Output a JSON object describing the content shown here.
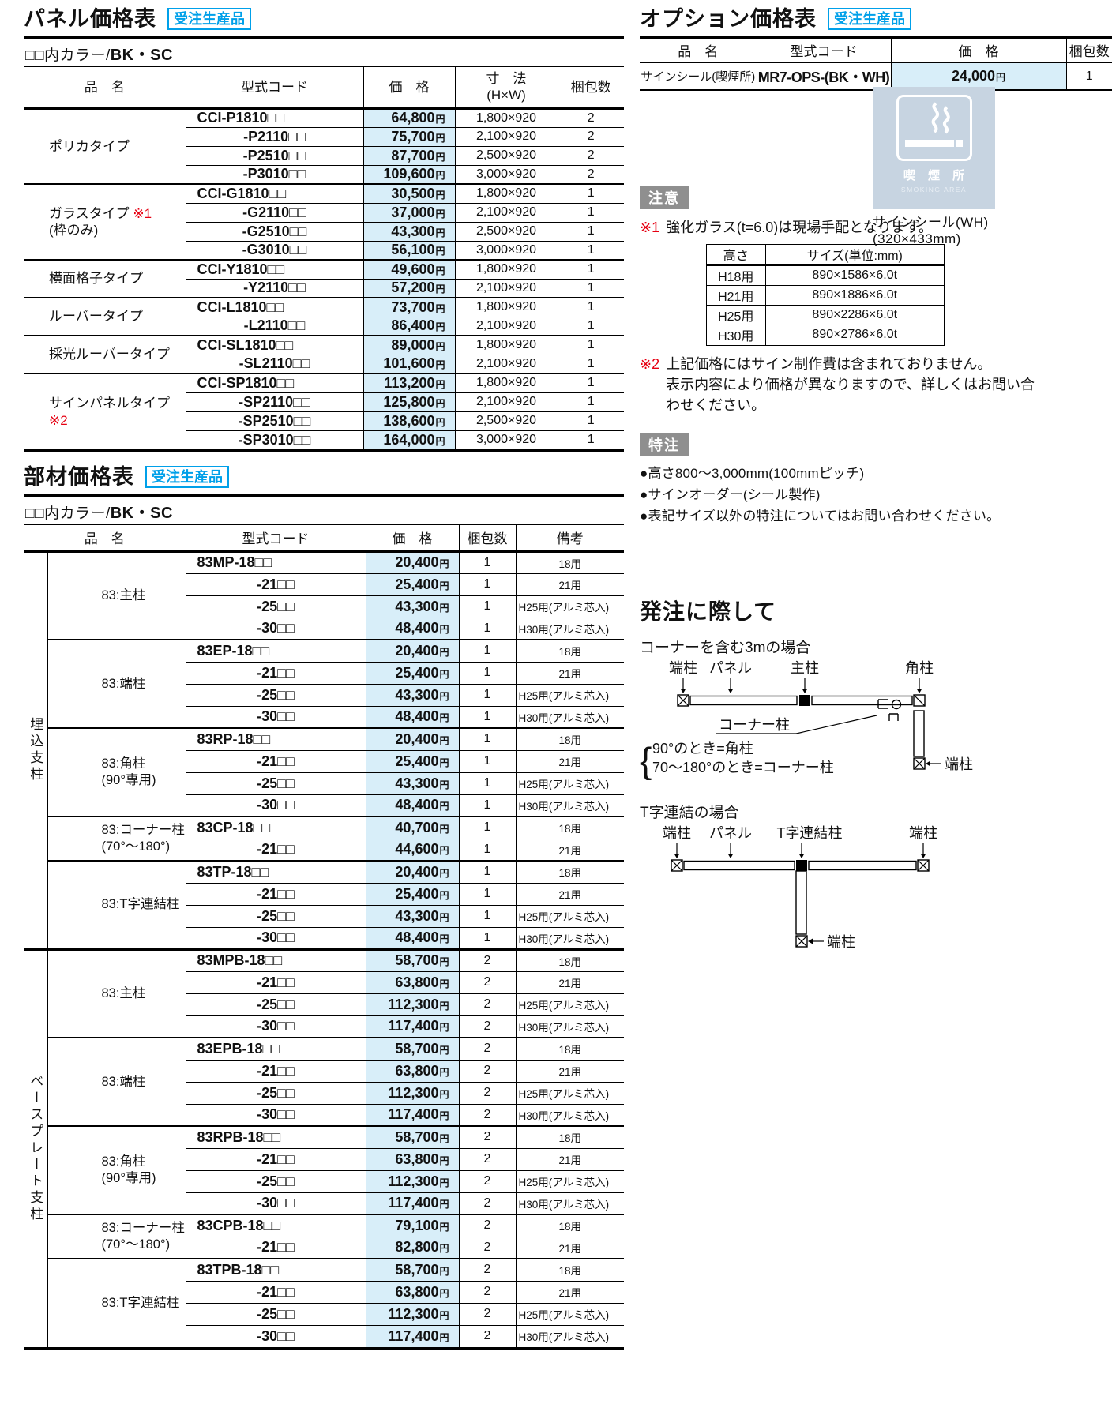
{
  "badges": {
    "order_made": "受注生産品",
    "caution": "注意",
    "custom": "特注"
  },
  "color_note": {
    "prefix": "□□内カラー/",
    "value": "BK・SC"
  },
  "panel": {
    "title": "パネル価格表",
    "headers": {
      "name": "品　名",
      "code": "型式コード",
      "price": "価　格",
      "size_1": "寸　法",
      "size_2": "(H×W)",
      "qty": "梱包数"
    },
    "groups": [
      {
        "label": "ポリカタイプ",
        "rows": [
          {
            "code": "CCI-P1810□□",
            "price": "64,800円",
            "size": "1,800×920",
            "qty": "2"
          },
          {
            "code": "-P2110□□",
            "price": "75,700円",
            "size": "2,100×920",
            "qty": "2"
          },
          {
            "code": "-P2510□□",
            "price": "87,700円",
            "size": "2,500×920",
            "qty": "2"
          },
          {
            "code": "-P3010□□",
            "price": "109,600円",
            "size": "3,000×920",
            "qty": "2"
          }
        ]
      },
      {
        "label": "ガラスタイプ",
        "ref": "※1",
        "sub": "(枠のみ)",
        "rows": [
          {
            "code": "CCI-G1810□□",
            "price": "30,500円",
            "size": "1,800×920",
            "qty": "1"
          },
          {
            "code": "-G2110□□",
            "price": "37,000円",
            "size": "2,100×920",
            "qty": "1"
          },
          {
            "code": "-G2510□□",
            "price": "43,300円",
            "size": "2,500×920",
            "qty": "1"
          },
          {
            "code": "-G3010□□",
            "price": "56,100円",
            "size": "3,000×920",
            "qty": "1"
          }
        ]
      },
      {
        "label": "横面格子タイプ",
        "rows": [
          {
            "code": "CCI-Y1810□□",
            "price": "49,600円",
            "size": "1,800×920",
            "qty": "1"
          },
          {
            "code": "-Y2110□□",
            "price": "57,200円",
            "size": "2,100×920",
            "qty": "1"
          }
        ]
      },
      {
        "label": "ルーバータイプ",
        "rows": [
          {
            "code": "CCI-L1810□□",
            "price": "73,700円",
            "size": "1,800×920",
            "qty": "1"
          },
          {
            "code": "-L2110□□",
            "price": "86,400円",
            "size": "2,100×920",
            "qty": "1"
          }
        ]
      },
      {
        "label": "採光ルーバータイプ",
        "rows": [
          {
            "code": "CCI-SL1810□□",
            "price": "89,000円",
            "size": "1,800×920",
            "qty": "1"
          },
          {
            "code": "-SL2110□□",
            "price": "101,600円",
            "size": "2,100×920",
            "qty": "1"
          }
        ]
      },
      {
        "label": "サインパネルタイプ",
        "ref": "※2",
        "rows": [
          {
            "code": "CCI-SP1810□□",
            "price": "113,200円",
            "size": "1,800×920",
            "qty": "1"
          },
          {
            "code": "-SP2110□□",
            "price": "125,800円",
            "size": "2,100×920",
            "qty": "1"
          },
          {
            "code": "-SP2510□□",
            "price": "138,600円",
            "size": "2,500×920",
            "qty": "1"
          },
          {
            "code": "-SP3010□□",
            "price": "164,000円",
            "size": "3,000×920",
            "qty": "1"
          }
        ]
      }
    ]
  },
  "parts": {
    "title": "部材価格表",
    "headers": {
      "name": "品　名",
      "code": "型式コード",
      "price": "価　格",
      "qty": "梱包数",
      "note": "備考"
    },
    "sections": [
      {
        "vlabel": "埋込支柱",
        "groups": [
          {
            "label": "83:主柱",
            "rows": [
              {
                "code": "83MP-18□□",
                "price": "20,400円",
                "qty": "1",
                "note": "18用"
              },
              {
                "code": "-21□□",
                "price": "25,400円",
                "qty": "1",
                "note": "21用"
              },
              {
                "code": "-25□□",
                "price": "43,300円",
                "qty": "1",
                "note": "H25用(アルミ芯入)"
              },
              {
                "code": "-30□□",
                "price": "48,400円",
                "qty": "1",
                "note": "H30用(アルミ芯入)"
              }
            ]
          },
          {
            "label": "83:端柱",
            "rows": [
              {
                "code": "83EP-18□□",
                "price": "20,400円",
                "qty": "1",
                "note": "18用"
              },
              {
                "code": "-21□□",
                "price": "25,400円",
                "qty": "1",
                "note": "21用"
              },
              {
                "code": "-25□□",
                "price": "43,300円",
                "qty": "1",
                "note": "H25用(アルミ芯入)"
              },
              {
                "code": "-30□□",
                "price": "48,400円",
                "qty": "1",
                "note": "H30用(アルミ芯入)"
              }
            ]
          },
          {
            "label": "83:角柱",
            "sub": "(90°専用)",
            "rows": [
              {
                "code": "83RP-18□□",
                "price": "20,400円",
                "qty": "1",
                "note": "18用"
              },
              {
                "code": "-21□□",
                "price": "25,400円",
                "qty": "1",
                "note": "21用"
              },
              {
                "code": "-25□□",
                "price": "43,300円",
                "qty": "1",
                "note": "H25用(アルミ芯入)"
              },
              {
                "code": "-30□□",
                "price": "48,400円",
                "qty": "1",
                "note": "H30用(アルミ芯入)"
              }
            ]
          },
          {
            "label": "83:コーナー柱",
            "sub": "(70°〜180°)",
            "rows": [
              {
                "code": "83CP-18□□",
                "price": "40,700円",
                "qty": "1",
                "note": "18用"
              },
              {
                "code": "-21□□",
                "price": "44,600円",
                "qty": "1",
                "note": "21用"
              }
            ]
          },
          {
            "label": "83:T字連結柱",
            "rows": [
              {
                "code": "83TP-18□□",
                "price": "20,400円",
                "qty": "1",
                "note": "18用"
              },
              {
                "code": "-21□□",
                "price": "25,400円",
                "qty": "1",
                "note": "21用"
              },
              {
                "code": "-25□□",
                "price": "43,300円",
                "qty": "1",
                "note": "H25用(アルミ芯入)"
              },
              {
                "code": "-30□□",
                "price": "48,400円",
                "qty": "1",
                "note": "H30用(アルミ芯入)"
              }
            ]
          }
        ]
      },
      {
        "vlabel": "ベースプレート支柱",
        "groups": [
          {
            "label": "83:主柱",
            "rows": [
              {
                "code": "83MPB-18□□",
                "price": "58,700円",
                "qty": "2",
                "note": "18用"
              },
              {
                "code": "-21□□",
                "price": "63,800円",
                "qty": "2",
                "note": "21用"
              },
              {
                "code": "-25□□",
                "price": "112,300円",
                "qty": "2",
                "note": "H25用(アルミ芯入)"
              },
              {
                "code": "-30□□",
                "price": "117,400円",
                "qty": "2",
                "note": "H30用(アルミ芯入)"
              }
            ]
          },
          {
            "label": "83:端柱",
            "rows": [
              {
                "code": "83EPB-18□□",
                "price": "58,700円",
                "qty": "2",
                "note": "18用"
              },
              {
                "code": "-21□□",
                "price": "63,800円",
                "qty": "2",
                "note": "21用"
              },
              {
                "code": "-25□□",
                "price": "112,300円",
                "qty": "2",
                "note": "H25用(アルミ芯入)"
              },
              {
                "code": "-30□□",
                "price": "117,400円",
                "qty": "2",
                "note": "H30用(アルミ芯入)"
              }
            ]
          },
          {
            "label": "83:角柱",
            "sub": "(90°専用)",
            "rows": [
              {
                "code": "83RPB-18□□",
                "price": "58,700円",
                "qty": "2",
                "note": "18用"
              },
              {
                "code": "-21□□",
                "price": "63,800円",
                "qty": "2",
                "note": "21用"
              },
              {
                "code": "-25□□",
                "price": "112,300円",
                "qty": "2",
                "note": "H25用(アルミ芯入)"
              },
              {
                "code": "-30□□",
                "price": "117,400円",
                "qty": "2",
                "note": "H30用(アルミ芯入)"
              }
            ]
          },
          {
            "label": "83:コーナー柱",
            "sub": "(70°〜180°)",
            "rows": [
              {
                "code": "83CPB-18□□",
                "price": "79,100円",
                "qty": "2",
                "note": "18用"
              },
              {
                "code": "-21□□",
                "price": "82,800円",
                "qty": "2",
                "note": "21用"
              }
            ]
          },
          {
            "label": "83:T字連結柱",
            "rows": [
              {
                "code": "83TPB-18□□",
                "price": "58,700円",
                "qty": "2",
                "note": "18用"
              },
              {
                "code": "-21□□",
                "price": "63,800円",
                "qty": "2",
                "note": "21用"
              },
              {
                "code": "-25□□",
                "price": "112,300円",
                "qty": "2",
                "note": "H25用(アルミ芯入)"
              },
              {
                "code": "-30□□",
                "price": "117,400円",
                "qty": "2",
                "note": "H30用(アルミ芯入)"
              }
            ]
          }
        ]
      }
    ]
  },
  "options": {
    "title": "オプション価格表",
    "headers": {
      "name": "品　名",
      "code": "型式コード",
      "price": "価　格",
      "qty": "梱包数"
    },
    "row": {
      "name": "サインシール(喫煙所)",
      "code": "MR7-OPS-(BK・WH)",
      "price": "24,000円",
      "qty": "1"
    },
    "sign": {
      "kanji": "喫 煙 所",
      "en": "SMOKING AREA",
      "caption_1": "サインシール(WH)",
      "caption_2": "(320×433mm)"
    }
  },
  "caution": {
    "note1_ref": "※1",
    "note1": "強化ガラス(t=6.0)は現場手配となります。",
    "glass_table": {
      "headers": [
        "高さ",
        "サイズ(単位:mm)"
      ],
      "rows": [
        [
          "H18用",
          "890×1586×6.0t"
        ],
        [
          "H21用",
          "890×1886×6.0t"
        ],
        [
          "H25用",
          "890×2286×6.0t"
        ],
        [
          "H30用",
          "890×2786×6.0t"
        ]
      ]
    },
    "note2_ref": "※2",
    "note2_lines": [
      "上記価格にはサイン制作費は含まれておりません。",
      "表示内容により価格が異なりますので、詳しくはお問い合",
      "わせください。"
    ]
  },
  "custom": {
    "bullets": [
      "●高さ800〜3,000mm(100mmピッチ)",
      "●サインオーダー(シール製作)",
      "●表記サイズ以外の特注についてはお問い合わせください。"
    ]
  },
  "ordering": {
    "title": "発注に際して",
    "case1": "コーナーを含む3mの場合",
    "d1": {
      "labels": [
        "端柱",
        "パネル",
        "主柱",
        "角柱"
      ],
      "corner_label": "コーナー柱",
      "rule1": "90°のとき=角柱",
      "rule2": "70〜180°のとき=コーナー柱",
      "end_label": "端柱"
    },
    "case2": "T字連結の場合",
    "d2": {
      "labels": [
        "端柱",
        "パネル",
        "T字連結柱",
        "端柱"
      ],
      "end_label": "端柱"
    }
  },
  "colors": {
    "accent_cyan": "#00a0e9",
    "price_bg": "#d8eef9",
    "badge_gray": "#8f8f8f",
    "ref_red": "#e60012",
    "sign_bg": "#c7d4e1"
  }
}
